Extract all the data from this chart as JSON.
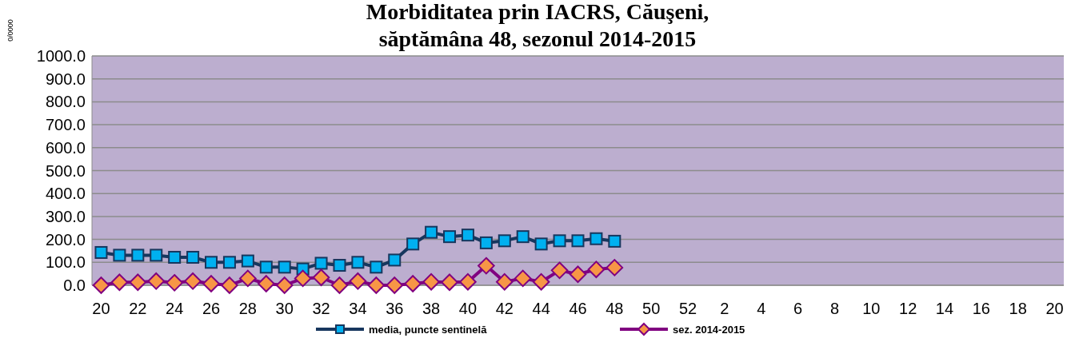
{
  "chart_data": {
    "type": "line",
    "title": "Morbiditatea prin IACRS, Căuşeni,\nsăptămâna 48, sezonul  2014-2015",
    "ylabel": "0/0000",
    "categories": [
      "20",
      null,
      "22",
      null,
      "24",
      null,
      "26",
      null,
      "28",
      null,
      "30",
      null,
      "32",
      null,
      "34",
      null,
      "36",
      null,
      "38",
      null,
      "40",
      null,
      "42",
      null,
      "44",
      null,
      "46",
      null,
      "48",
      null,
      "50",
      null,
      "52",
      null,
      "2",
      null,
      "4",
      null,
      "6",
      null,
      "8",
      null,
      "10",
      null,
      "12",
      null,
      "14",
      null,
      "16",
      null,
      "18",
      null,
      "20"
    ],
    "series": [
      {
        "name": "media, puncte sentinelă",
        "color": "#17375e",
        "marker": "square",
        "values": [
          143,
          131,
          131,
          131,
          122,
          122,
          100,
          100,
          106,
          79,
          79,
          71,
          96,
          87,
          100,
          79,
          110,
          180,
          231,
          212,
          219,
          185,
          194,
          212,
          180,
          194,
          194,
          203,
          192,
          null,
          null,
          null,
          null,
          null,
          null,
          null,
          null,
          null,
          null,
          null,
          null,
          null,
          null,
          null,
          null,
          null,
          null,
          null,
          null,
          null,
          null,
          null,
          null
        ]
      },
      {
        "name": "sez. 2014-2015",
        "color": "#800080",
        "marker": "diamond",
        "values": [
          0,
          13,
          13,
          18,
          11,
          18,
          7,
          0,
          30,
          7,
          0,
          30,
          34,
          0,
          18,
          0,
          0,
          7,
          15,
          13,
          15,
          85,
          15,
          30,
          15,
          65,
          48,
          69,
          77,
          null,
          null,
          null,
          null,
          null,
          null,
          null,
          null,
          null,
          null,
          null,
          null,
          null,
          null,
          null,
          null,
          null,
          null,
          null,
          null,
          null,
          null,
          null,
          null
        ]
      }
    ],
    "ylim": [
      0,
      1000
    ],
    "yticks": [
      {
        "value": 0,
        "label": "0.0"
      },
      {
        "value": 100,
        "label": "100.0"
      },
      {
        "value": 200,
        "label": "200.0"
      },
      {
        "value": 300,
        "label": "300.0"
      },
      {
        "value": 400,
        "label": "400.0"
      },
      {
        "value": 500,
        "label": "500.0"
      },
      {
        "value": 600,
        "label": "600.0"
      },
      {
        "value": 700,
        "label": "700.0"
      },
      {
        "value": 800,
        "label": "800.0"
      },
      {
        "value": 900,
        "label": "900.0"
      },
      {
        "value": 1000,
        "label": "1000.0"
      }
    ],
    "grid": "y",
    "legend": "bottom"
  }
}
